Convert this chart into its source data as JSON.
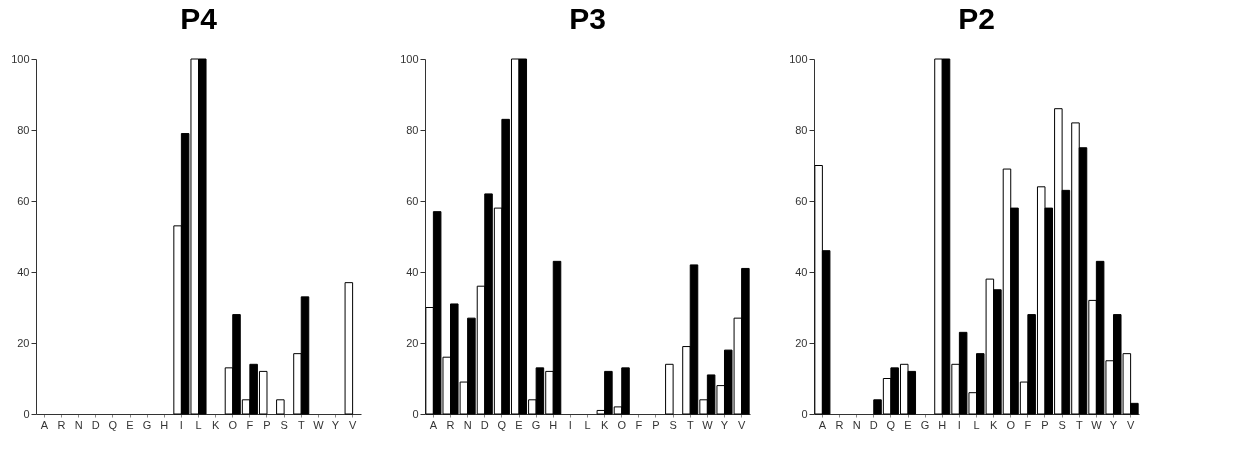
{
  "chart_data": [
    {
      "type": "bar",
      "title": "P4",
      "categories": [
        "A",
        "R",
        "N",
        "D",
        "Q",
        "E",
        "G",
        "H",
        "I",
        "L",
        "K",
        "O",
        "F",
        "P",
        "S",
        "T",
        "W",
        "Y",
        "V"
      ],
      "ylim": [
        0,
        100
      ],
      "yticks": [
        0,
        20,
        40,
        60,
        80,
        100
      ],
      "grid": false,
      "legend": false,
      "series": [
        {
          "color": "#ffffff",
          "values": [
            0,
            0,
            0,
            0,
            0,
            0,
            0,
            0,
            53,
            100,
            0,
            13,
            4,
            12,
            4,
            17,
            0,
            0,
            37
          ]
        },
        {
          "color": "#000000",
          "values": [
            0,
            0,
            0,
            0,
            0,
            0,
            0,
            0,
            79,
            100,
            0,
            28,
            14,
            0,
            0,
            33,
            0,
            0,
            0
          ]
        }
      ]
    },
    {
      "type": "bar",
      "title": "P3",
      "categories": [
        "A",
        "R",
        "N",
        "D",
        "Q",
        "E",
        "G",
        "H",
        "I",
        "L",
        "K",
        "O",
        "F",
        "P",
        "S",
        "T",
        "W",
        "Y",
        "V"
      ],
      "ylim": [
        0,
        100
      ],
      "yticks": [
        0,
        20,
        40,
        60,
        80,
        100
      ],
      "grid": false,
      "legend": false,
      "series": [
        {
          "color": "#ffffff",
          "values": [
            30,
            16,
            9,
            36,
            58,
            100,
            4,
            12,
            0,
            0,
            1,
            2,
            0,
            0,
            14,
            19,
            4,
            8,
            27
          ]
        },
        {
          "color": "#000000",
          "values": [
            57,
            31,
            27,
            62,
            83,
            100,
            13,
            43,
            0,
            0,
            12,
            13,
            0,
            0,
            0,
            42,
            11,
            18,
            41
          ]
        }
      ]
    },
    {
      "type": "bar",
      "title": "P2",
      "categories": [
        "A",
        "R",
        "N",
        "D",
        "Q",
        "E",
        "G",
        "H",
        "I",
        "L",
        "K",
        "O",
        "F",
        "P",
        "S",
        "T",
        "W",
        "Y",
        "V"
      ],
      "ylim": [
        0,
        100
      ],
      "yticks": [
        0,
        20,
        40,
        60,
        80,
        100
      ],
      "grid": false,
      "legend": false,
      "series": [
        {
          "color": "#ffffff",
          "values": [
            70,
            0,
            0,
            0,
            10,
            14,
            0,
            100,
            14,
            6,
            38,
            69,
            9,
            64,
            86,
            82,
            32,
            15,
            17
          ]
        },
        {
          "color": "#000000",
          "values": [
            46,
            0,
            0,
            4,
            13,
            12,
            0,
            100,
            23,
            17,
            35,
            58,
            28,
            58,
            63,
            75,
            43,
            28,
            3
          ]
        }
      ]
    }
  ]
}
